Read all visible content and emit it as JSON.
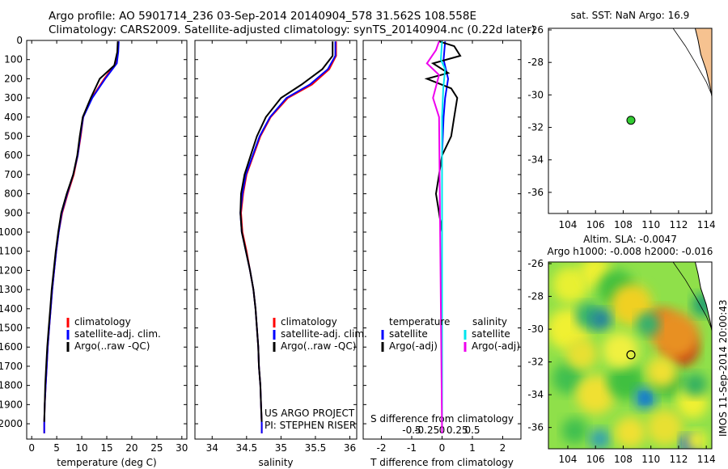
{
  "header": {
    "line1": "Argo profile: AO 5901714_236 03-Sep-2014 20140904_578 31.562S 108.558E",
    "line2": "Climatology: CARS2009. Satellite-adjusted climatology: synTS_20140904.nc (0.22d later)"
  },
  "footer_stamp": "IMOS 11-Sep-2014 20:00:43",
  "colors": {
    "climatology": "#ff0000",
    "satellite": "#0000ff",
    "argo": "#000000",
    "satellite_s": "#00e5ee",
    "argo_s": "#ee00ee"
  },
  "chart_data": [
    {
      "type": "line",
      "panel": "temperature",
      "xlabel": "temperature (deg C)",
      "xlim": [
        -1,
        31
      ],
      "xticks": [
        0,
        5,
        10,
        15,
        20,
        25,
        30
      ],
      "ylim": [
        0,
        2080
      ],
      "yticks": [
        0,
        100,
        200,
        300,
        400,
        500,
        600,
        700,
        800,
        900,
        1000,
        1100,
        1200,
        1300,
        1400,
        1500,
        1600,
        1700,
        1800,
        1900,
        2000
      ],
      "legend": [
        "climatology",
        "satellite-adj. clim.",
        "Argo(..raw -QC)"
      ],
      "series": [
        {
          "name": "climatology",
          "color": "#ff0000",
          "points": [
            [
              17.3,
              5
            ],
            [
              17.2,
              60
            ],
            [
              16.8,
              120
            ],
            [
              14.5,
              200
            ],
            [
              12,
              300
            ],
            [
              10.3,
              400
            ],
            [
              9.8,
              500
            ],
            [
              9.2,
              600
            ],
            [
              8.4,
              700
            ],
            [
              7.2,
              800
            ],
            [
              6.1,
              900
            ],
            [
              5.4,
              1000
            ],
            [
              4.9,
              1100
            ],
            [
              4.5,
              1200
            ],
            [
              4.1,
              1300
            ],
            [
              3.8,
              1400
            ],
            [
              3.5,
              1500
            ],
            [
              3.2,
              1600
            ],
            [
              3.0,
              1700
            ],
            [
              2.8,
              1800
            ],
            [
              2.6,
              1900
            ],
            [
              2.5,
              2000
            ],
            [
              2.5,
              2050
            ]
          ]
        },
        {
          "name": "satellite-adj. clim.",
          "color": "#0000ff",
          "points": [
            [
              17.4,
              5
            ],
            [
              17.3,
              60
            ],
            [
              17,
              120
            ],
            [
              14.7,
              200
            ],
            [
              12.1,
              300
            ],
            [
              10.3,
              400
            ],
            [
              9.7,
              500
            ],
            [
              9.2,
              600
            ],
            [
              8.3,
              700
            ],
            [
              7.1,
              800
            ],
            [
              6.0,
              900
            ],
            [
              5.4,
              1000
            ],
            [
              4.9,
              1100
            ],
            [
              4.5,
              1200
            ],
            [
              4.1,
              1300
            ],
            [
              3.8,
              1400
            ],
            [
              3.5,
              1500
            ],
            [
              3.2,
              1600
            ],
            [
              3.0,
              1700
            ],
            [
              2.8,
              1800
            ],
            [
              2.6,
              1900
            ],
            [
              2.5,
              2000
            ],
            [
              2.5,
              2050
            ]
          ]
        },
        {
          "name": "Argo(..raw -QC)",
          "color": "#000000",
          "points": [
            [
              17.2,
              5
            ],
            [
              17.1,
              60
            ],
            [
              16.5,
              130
            ],
            [
              13.6,
              200
            ],
            [
              11.8,
              300
            ],
            [
              10.2,
              400
            ],
            [
              9.6,
              500
            ],
            [
              9.1,
              600
            ],
            [
              8.3,
              700
            ],
            [
              7.0,
              800
            ],
            [
              5.9,
              900
            ],
            [
              5.3,
              1000
            ],
            [
              4.8,
              1100
            ],
            [
              4.4,
              1200
            ],
            [
              4.0,
              1300
            ],
            [
              3.7,
              1400
            ],
            [
              3.4,
              1500
            ],
            [
              3.1,
              1600
            ],
            [
              2.9,
              1700
            ],
            [
              2.7,
              1800
            ],
            [
              2.6,
              1900
            ],
            [
              2.5,
              1990
            ]
          ]
        }
      ]
    },
    {
      "type": "line",
      "panel": "salinity",
      "xlabel": "salinity",
      "xlim": [
        33.75,
        36.1
      ],
      "xticks": [
        34,
        34.5,
        35,
        35.5,
        36
      ],
      "xticklabels": [
        "34",
        "34.5",
        "35",
        "35.5",
        "36"
      ],
      "ylim": [
        0,
        2080
      ],
      "legend": [
        "climatology",
        "satellite-adj. clim.",
        "Argo(..raw -QC)"
      ],
      "annotations": [
        "US ARGO PROJECT",
        "PI: STEPHEN RISER"
      ],
      "series": [
        {
          "name": "climatology",
          "color": "#ff0000",
          "points": [
            [
              35.8,
              5
            ],
            [
              35.8,
              80
            ],
            [
              35.7,
              150
            ],
            [
              35.45,
              230
            ],
            [
              35.1,
              300
            ],
            [
              34.85,
              400
            ],
            [
              34.7,
              500
            ],
            [
              34.6,
              600
            ],
            [
              34.5,
              700
            ],
            [
              34.45,
              800
            ],
            [
              34.42,
              900
            ],
            [
              34.44,
              1000
            ],
            [
              34.5,
              1100
            ],
            [
              34.55,
              1200
            ],
            [
              34.6,
              1300
            ],
            [
              34.63,
              1400
            ],
            [
              34.65,
              1500
            ],
            [
              34.67,
              1600
            ],
            [
              34.68,
              1700
            ],
            [
              34.7,
              1800
            ],
            [
              34.71,
              1900
            ],
            [
              34.72,
              2000
            ],
            [
              34.72,
              2050
            ]
          ]
        },
        {
          "name": "satellite-adj. clim.",
          "color": "#0000ff",
          "points": [
            [
              35.79,
              5
            ],
            [
              35.79,
              80
            ],
            [
              35.68,
              150
            ],
            [
              35.42,
              230
            ],
            [
              35.08,
              300
            ],
            [
              34.84,
              400
            ],
            [
              34.69,
              500
            ],
            [
              34.59,
              600
            ],
            [
              34.49,
              700
            ],
            [
              34.44,
              800
            ],
            [
              34.41,
              900
            ],
            [
              34.43,
              1000
            ],
            [
              34.49,
              1100
            ],
            [
              34.55,
              1200
            ],
            [
              34.6,
              1300
            ],
            [
              34.63,
              1400
            ],
            [
              34.65,
              1500
            ],
            [
              34.67,
              1600
            ],
            [
              34.68,
              1700
            ],
            [
              34.7,
              1800
            ],
            [
              34.71,
              1900
            ],
            [
              34.72,
              2000
            ],
            [
              34.72,
              2050
            ]
          ]
        },
        {
          "name": "Argo(..raw -QC)",
          "color": "#000000",
          "points": [
            [
              35.75,
              5
            ],
            [
              35.75,
              80
            ],
            [
              35.6,
              150
            ],
            [
              35.3,
              230
            ],
            [
              35.0,
              300
            ],
            [
              34.78,
              400
            ],
            [
              34.65,
              500
            ],
            [
              34.56,
              600
            ],
            [
              34.47,
              700
            ],
            [
              34.42,
              800
            ],
            [
              34.41,
              900
            ],
            [
              34.43,
              1000
            ],
            [
              34.49,
              1100
            ],
            [
              34.55,
              1200
            ],
            [
              34.6,
              1300
            ],
            [
              34.63,
              1400
            ],
            [
              34.65,
              1500
            ],
            [
              34.67,
              1600
            ],
            [
              34.68,
              1700
            ],
            [
              34.7,
              1800
            ],
            [
              34.71,
              1900
            ],
            [
              34.72,
              1990
            ]
          ]
        }
      ]
    },
    {
      "type": "line",
      "panel": "difference",
      "xlabel": "T difference from climatology",
      "xlabel_top": "S difference from climatology",
      "xlim": [
        -2.6,
        2.6
      ],
      "xticks": [
        -2,
        -1,
        0,
        1,
        2
      ],
      "xticks_s": [
        {
          "v": -0.5,
          "label": "-0.5"
        },
        {
          "v": -0.25,
          "label": "-0.25"
        },
        {
          "v": 0,
          "label": "0"
        },
        {
          "v": 0.25,
          "label": "0.25"
        },
        {
          "v": 0.5,
          "label": "0.5"
        }
      ],
      "ylim": [
        0,
        2080
      ],
      "legend_t_title": "temperature",
      "legend_s_title": "salinity",
      "legend": [
        "satellite",
        "Argo(-adj)",
        "satellite",
        "Argo(-adj)"
      ],
      "series": [
        {
          "name": "T satellite",
          "color": "#0000ff",
          "points": [
            [
              0.1,
              5
            ],
            [
              0.05,
              100
            ],
            [
              0.2,
              200
            ],
            [
              0.1,
              300
            ],
            [
              0.05,
              400
            ],
            [
              0,
              600
            ],
            [
              0,
              2050
            ]
          ]
        },
        {
          "name": "T Argo(-adj)",
          "color": "#000000",
          "points": [
            [
              -0.1,
              5
            ],
            [
              0.4,
              30
            ],
            [
              0.6,
              80
            ],
            [
              -0.3,
              120
            ],
            [
              0.2,
              170
            ],
            [
              -0.5,
              200
            ],
            [
              0.3,
              250
            ],
            [
              0.5,
              300
            ],
            [
              0.4,
              400
            ],
            [
              0.3,
              500
            ],
            [
              0,
              600
            ],
            [
              -0.1,
              700
            ],
            [
              -0.2,
              800
            ],
            [
              -0.1,
              900
            ],
            [
              0,
              1000
            ],
            [
              0,
              1990
            ]
          ]
        },
        {
          "name": "S satellite",
          "color": "#00e5ee",
          "points": [
            [
              0,
              5
            ],
            [
              -0.02,
              100
            ],
            [
              0.05,
              150
            ],
            [
              0.02,
              250
            ],
            [
              0,
              400
            ],
            [
              0,
              2050
            ]
          ]
        },
        {
          "name": "S Argo(-adj)",
          "color": "#ee00ee",
          "points": [
            [
              -0.05,
              5
            ],
            [
              -0.1,
              50
            ],
            [
              -0.25,
              120
            ],
            [
              -0.05,
              180
            ],
            [
              -0.15,
              300
            ],
            [
              -0.05,
              400
            ],
            [
              0,
              2050
            ]
          ]
        }
      ]
    },
    {
      "type": "scatter",
      "panel": "sst-map",
      "title": "sat. SST: NaN Argo: 16.9",
      "xlim": [
        102.6,
        114.4
      ],
      "ylim": [
        -37.3,
        -25.9
      ],
      "xticks": [
        104,
        106,
        108,
        110,
        112,
        114
      ],
      "yticks": [
        -26,
        -28,
        -30,
        -32,
        -34,
        -36
      ],
      "point": {
        "lon": 108.558,
        "lat": -31.562,
        "color": "#33cc33"
      }
    },
    {
      "type": "heatmap",
      "panel": "sla-map",
      "title_line1": "Altim. SLA: -0.0047",
      "title_line2": "Argo h1000: -0.008 h2000: -0.016",
      "xlim": [
        102.6,
        114.4
      ],
      "ylim": [
        -37.3,
        -25.9
      ],
      "xticks": [
        104,
        106,
        108,
        110,
        112,
        114
      ],
      "yticks": [
        -26,
        -28,
        -30,
        -32,
        -34,
        -36
      ],
      "point": {
        "lon": 108.558,
        "lat": -31.562
      }
    }
  ]
}
